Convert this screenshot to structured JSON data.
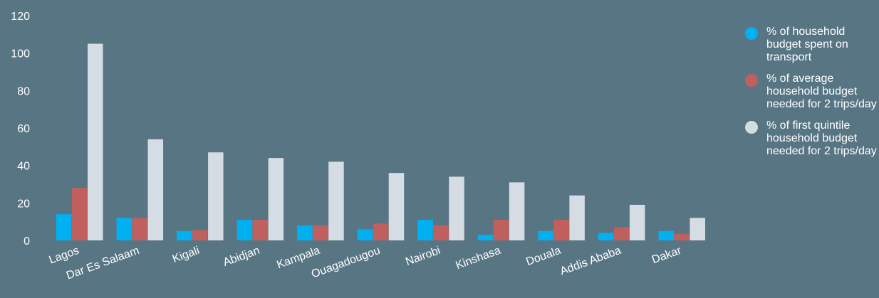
{
  "chart_data": {
    "type": "bar",
    "title": "",
    "xlabel": "",
    "ylabel": "",
    "ylim": [
      0,
      120
    ],
    "yticks": [
      0,
      20,
      40,
      60,
      80,
      100,
      120
    ],
    "grid": false,
    "legend_position": "right",
    "categories": [
      "Lagos",
      "Dar Es Salaam",
      "Kigali",
      "Abidjan",
      "Kampala",
      "Ouagadougou",
      "Nairobi",
      "Kinshasa",
      "Douala",
      "Addis Ababa",
      "Dakar"
    ],
    "series": [
      {
        "name": "% of household budget spent on transport",
        "color": "#00b0f0",
        "values": [
          14,
          12,
          5,
          11,
          8,
          6,
          11,
          3,
          5,
          4,
          5
        ]
      },
      {
        "name": "% of average household budget needed for 2 trips/day",
        "color": "#c0605e",
        "values": [
          28,
          12,
          5.5,
          11,
          8,
          9,
          8,
          11,
          11,
          7,
          3.5
        ]
      },
      {
        "name": "% of first quintile household budget needed for 2 trips/day",
        "color": "#d6dce3",
        "values": [
          105,
          54,
          47,
          44,
          42,
          36,
          34,
          31,
          24,
          19,
          12
        ]
      }
    ]
  }
}
